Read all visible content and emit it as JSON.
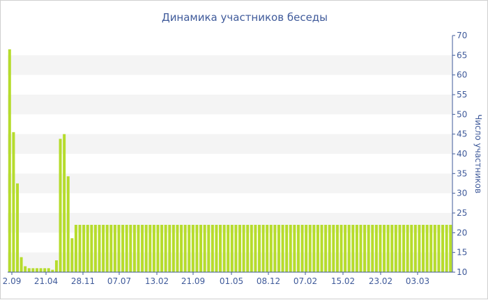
{
  "chart_data": {
    "type": "bar",
    "title": "Динамика участников беседы",
    "ylabel": "Число участников",
    "xlabel": "",
    "ylim": [
      10,
      70
    ],
    "y_ticks": [
      10,
      15,
      20,
      25,
      30,
      35,
      40,
      45,
      50,
      55,
      60,
      65,
      70
    ],
    "y_axis_position": "right",
    "x_tick_labels": [
      "2.09",
      "21.04",
      "28.11",
      "07.07",
      "13.02",
      "21.09",
      "01.05",
      "08.12",
      "07.02",
      "15.02",
      "23.02",
      "03.03"
    ],
    "grid": "alternating horizontal bands",
    "bar_color": "#b6dc2c",
    "band_color": "#f4f4f4",
    "axis_color": "#3f5a9a",
    "values": [
      66.5,
      45.5,
      32.5,
      13.8,
      11.5,
      11.0,
      11.0,
      11.0,
      11.0,
      11.0,
      11.0,
      10.6,
      13.0,
      43.8,
      45.0,
      34.3,
      18.6,
      22,
      22,
      22,
      22,
      22,
      22,
      22,
      22,
      22,
      22,
      22,
      22,
      22,
      22,
      22,
      22,
      22,
      22,
      22,
      22,
      22,
      22,
      22,
      22,
      22,
      22,
      22,
      22,
      22,
      22,
      22,
      22,
      22,
      22,
      22,
      22,
      22,
      22,
      22,
      22,
      22,
      22,
      22,
      22,
      22,
      22,
      22,
      22,
      22,
      22,
      22,
      22,
      22,
      22,
      22,
      22,
      22,
      22,
      22,
      22,
      22,
      22,
      22,
      22,
      22,
      22,
      22,
      22,
      22,
      22,
      22,
      22,
      22,
      22,
      22,
      22,
      22,
      22,
      22,
      22,
      22,
      22,
      22,
      22,
      22,
      22,
      22,
      22,
      22,
      22,
      22,
      22,
      22,
      22,
      22,
      22,
      22
    ]
  }
}
